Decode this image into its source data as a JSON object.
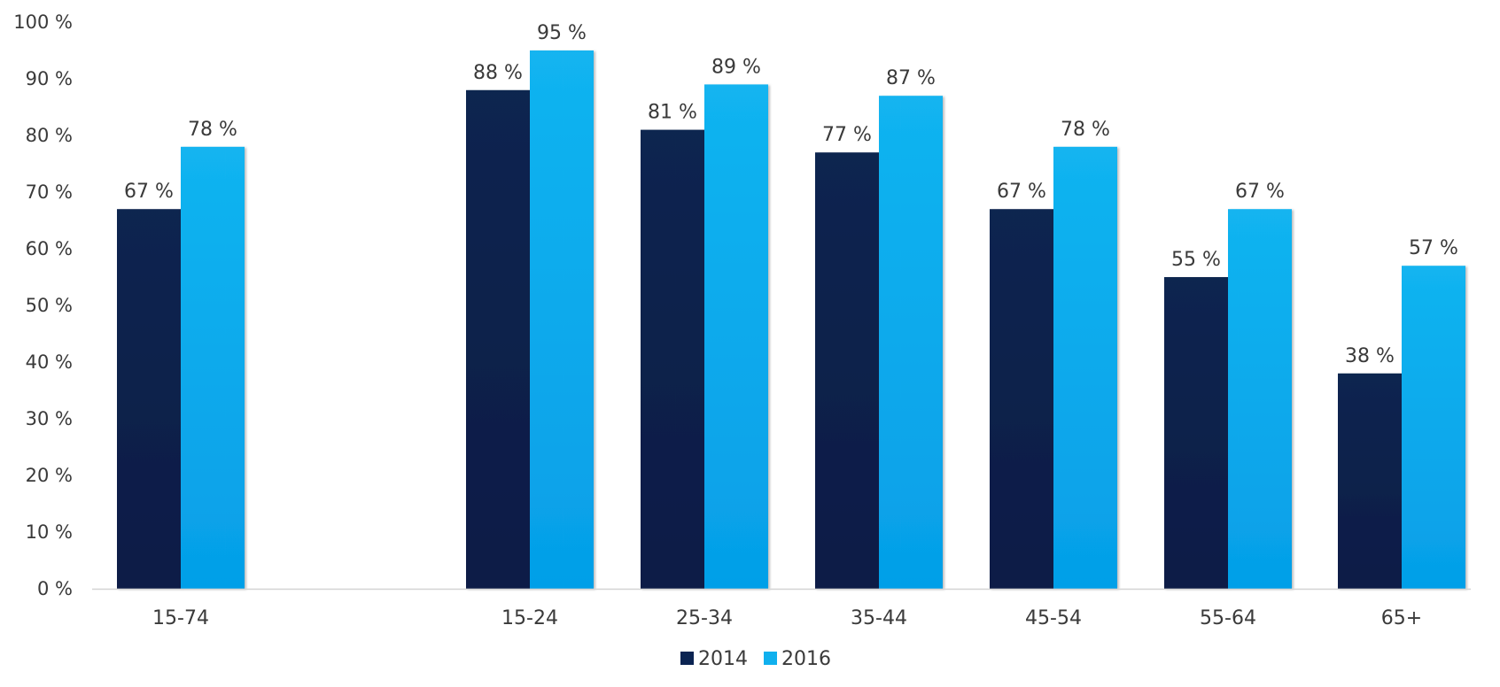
{
  "chart_data": {
    "type": "bar",
    "categories": [
      "15-74",
      "",
      "15-24",
      "25-34",
      "35-44",
      "45-54",
      "55-64",
      "65+"
    ],
    "series": [
      {
        "name": "2014",
        "values": [
          67,
          null,
          88,
          81,
          77,
          67,
          55,
          38
        ],
        "labels": [
          "67 %",
          "",
          "88 %",
          "81 %",
          "77 %",
          "67 %",
          "55 %",
          "38 %"
        ],
        "color": "#0b2452"
      },
      {
        "name": "2016",
        "values": [
          78,
          null,
          95,
          89,
          87,
          78,
          67,
          57
        ],
        "labels": [
          "78 %",
          "",
          "95 %",
          "89 %",
          "87 %",
          "78 %",
          "67 %",
          "57 %"
        ],
        "color": "#10b0ee"
      }
    ],
    "yticks": [
      "0 %",
      "10 %",
      "20 %",
      "30 %",
      "40 %",
      "50 %",
      "60 %",
      "70 %",
      "80 %",
      "90 %",
      "100 %"
    ],
    "ylim": [
      0,
      100
    ],
    "grid": false,
    "legend": "bottom-center"
  }
}
